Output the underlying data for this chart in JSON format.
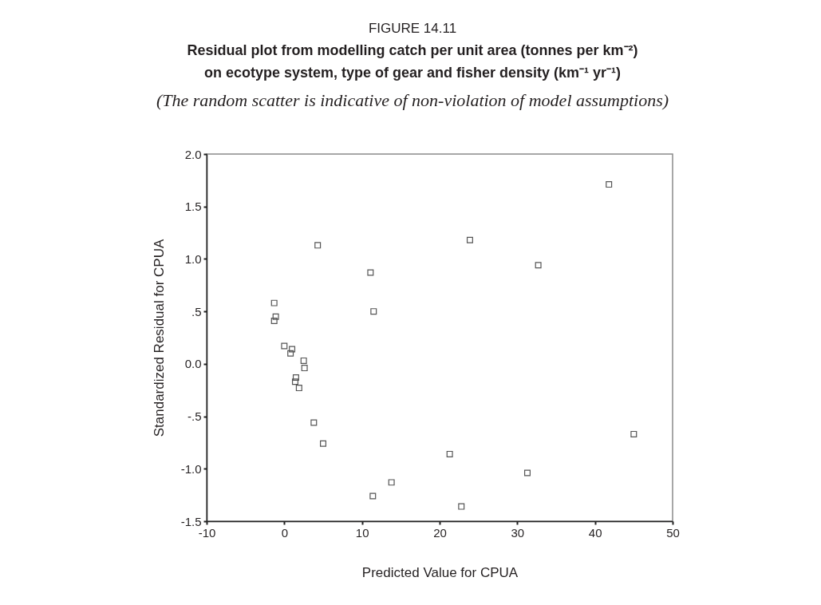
{
  "chart_data": {
    "type": "scatter",
    "title": "Residual plot from modelling catch per unit area (tonnes per km⁻²)\non ecotype system, type of gear and fisher density (km⁻¹ yr⁻¹)",
    "subtitle": "(The random scatter is indicative of non-violation of model assumptions)",
    "annotations": [
      "FIGURE 14.11"
    ],
    "xlabel": "Predicted Value for CPUA",
    "ylabel": "Standardized Residual for CPUA",
    "x": [
      -1.3,
      -1.1,
      -1.3,
      0.0,
      1.0,
      0.8,
      2.5,
      2.6,
      1.5,
      1.4,
      1.9,
      3.8,
      5.0,
      4.3,
      11.1,
      11.5,
      23.9,
      32.7,
      41.8,
      45.0,
      21.3,
      31.3,
      13.8,
      11.4,
      22.8
    ],
    "values": [
      0.58,
      0.45,
      0.41,
      0.17,
      0.14,
      0.1,
      0.03,
      -0.04,
      -0.13,
      -0.17,
      -0.23,
      -0.56,
      -0.76,
      1.13,
      0.87,
      0.5,
      1.18,
      0.94,
      1.71,
      -0.67,
      -0.86,
      -1.04,
      -1.13,
      -1.26,
      -1.36
    ],
    "color": "#555555",
    "marker": "square",
    "grid": false,
    "xlim": [
      -10,
      50
    ],
    "xticks": [
      -10,
      0,
      10,
      20,
      30,
      40,
      50
    ],
    "ylim": [
      -1.5,
      2.0
    ],
    "yticks": [
      {
        "value": -1.5,
        "label": "-1.5"
      },
      {
        "value": -1.0,
        "label": "-1.0"
      },
      {
        "value": -0.5,
        "label": "-.5"
      },
      {
        "value": 0,
        "label": "0.0"
      },
      {
        "value": 0.5,
        "label": ".5"
      },
      {
        "value": 1.0,
        "label": "1.0"
      },
      {
        "value": 1.5,
        "label": "1.5"
      },
      {
        "value": 2.0,
        "label": "2.0"
      }
    ]
  }
}
